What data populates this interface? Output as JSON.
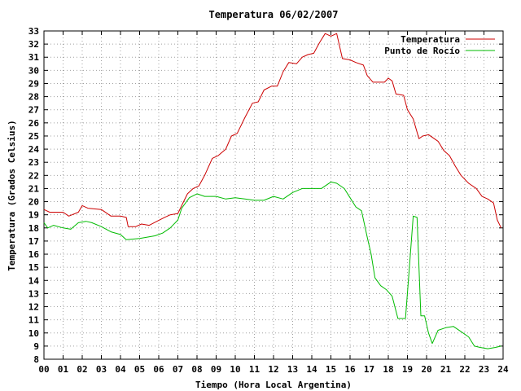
{
  "chart_data": {
    "type": "line",
    "title": "Temperatura 06/02/2007",
    "xlabel": "Tiempo (Hora Local Argentina)",
    "ylabel": "Temperatura (Grados Celsius)",
    "xlim": [
      0,
      24
    ],
    "ylim": [
      8,
      33
    ],
    "x_ticks": [
      "00",
      "01",
      "02",
      "03",
      "04",
      "05",
      "06",
      "07",
      "08",
      "09",
      "10",
      "11",
      "12",
      "13",
      "14",
      "15",
      "16",
      "17",
      "18",
      "19",
      "20",
      "21",
      "22",
      "23",
      "24"
    ],
    "y_ticks": [
      8,
      9,
      10,
      11,
      12,
      13,
      14,
      15,
      16,
      17,
      18,
      19,
      20,
      21,
      22,
      23,
      24,
      25,
      26,
      27,
      28,
      29,
      30,
      31,
      32,
      33
    ],
    "grid": true,
    "legend_position": "top-right",
    "series": [
      {
        "name": "Temperatura",
        "color": "#cc0000",
        "points": [
          [
            0,
            19.4
          ],
          [
            0.3,
            19.2
          ],
          [
            1,
            19.2
          ],
          [
            1.3,
            18.9
          ],
          [
            1.8,
            19.2
          ],
          [
            2,
            19.7
          ],
          [
            2.3,
            19.5
          ],
          [
            3,
            19.4
          ],
          [
            3.5,
            18.9
          ],
          [
            4,
            18.9
          ],
          [
            4.3,
            18.8
          ],
          [
            4.4,
            18.1
          ],
          [
            4.8,
            18.1
          ],
          [
            5.1,
            18.3
          ],
          [
            5.5,
            18.2
          ],
          [
            5.9,
            18.5
          ],
          [
            6.3,
            18.8
          ],
          [
            6.6,
            19.0
          ],
          [
            7,
            19.1
          ],
          [
            7.3,
            20.0
          ],
          [
            7.5,
            20.6
          ],
          [
            7.8,
            21.0
          ],
          [
            8.1,
            21.2
          ],
          [
            8.4,
            22.0
          ],
          [
            8.8,
            23.3
          ],
          [
            9.1,
            23.5
          ],
          [
            9.5,
            24.0
          ],
          [
            9.8,
            25.0
          ],
          [
            10.1,
            25.2
          ],
          [
            10.5,
            26.4
          ],
          [
            10.9,
            27.5
          ],
          [
            11.2,
            27.6
          ],
          [
            11.5,
            28.5
          ],
          [
            11.9,
            28.8
          ],
          [
            12.2,
            28.8
          ],
          [
            12.5,
            29.9
          ],
          [
            12.8,
            30.6
          ],
          [
            13.2,
            30.5
          ],
          [
            13.5,
            31.0
          ],
          [
            13.8,
            31.2
          ],
          [
            14.1,
            31.3
          ],
          [
            14.4,
            32.1
          ],
          [
            14.7,
            32.8
          ],
          [
            15.0,
            32.6
          ],
          [
            15.3,
            32.8
          ],
          [
            15.6,
            30.9
          ],
          [
            16.0,
            30.8
          ],
          [
            16.3,
            30.6
          ],
          [
            16.7,
            30.4
          ],
          [
            16.9,
            29.6
          ],
          [
            17.2,
            29.1
          ],
          [
            17.6,
            29.1
          ],
          [
            17.8,
            29.1
          ],
          [
            18.0,
            29.4
          ],
          [
            18.2,
            29.2
          ],
          [
            18.4,
            28.2
          ],
          [
            18.8,
            28.1
          ],
          [
            19.0,
            27.0
          ],
          [
            19.3,
            26.3
          ],
          [
            19.6,
            24.8
          ],
          [
            19.8,
            25.0
          ],
          [
            20.1,
            25.1
          ],
          [
            20.4,
            24.8
          ],
          [
            20.6,
            24.6
          ],
          [
            20.9,
            23.9
          ],
          [
            21.2,
            23.5
          ],
          [
            21.5,
            22.7
          ],
          [
            21.8,
            22.0
          ],
          [
            22.2,
            21.4
          ],
          [
            22.6,
            21.0
          ],
          [
            22.9,
            20.4
          ],
          [
            23.2,
            20.2
          ],
          [
            23.5,
            19.9
          ],
          [
            23.7,
            18.6
          ],
          [
            23.9,
            18.0
          ]
        ]
      },
      {
        "name": "Punto de Rocío",
        "color": "#00bb00",
        "points": [
          [
            0,
            18.4
          ],
          [
            0.2,
            18.0
          ],
          [
            0.5,
            18.2
          ],
          [
            1.0,
            18.0
          ],
          [
            1.4,
            17.9
          ],
          [
            1.8,
            18.4
          ],
          [
            2.2,
            18.5
          ],
          [
            2.5,
            18.4
          ],
          [
            3.0,
            18.1
          ],
          [
            3.5,
            17.7
          ],
          [
            4.0,
            17.5
          ],
          [
            4.3,
            17.1
          ],
          [
            5.0,
            17.2
          ],
          [
            5.4,
            17.3
          ],
          [
            5.8,
            17.4
          ],
          [
            6.2,
            17.6
          ],
          [
            6.6,
            18.0
          ],
          [
            7.0,
            18.6
          ],
          [
            7.2,
            19.5
          ],
          [
            7.6,
            20.3
          ],
          [
            8.0,
            20.6
          ],
          [
            8.4,
            20.4
          ],
          [
            9.0,
            20.4
          ],
          [
            9.5,
            20.2
          ],
          [
            10.0,
            20.3
          ],
          [
            10.5,
            20.2
          ],
          [
            11.0,
            20.1
          ],
          [
            11.5,
            20.1
          ],
          [
            12.0,
            20.4
          ],
          [
            12.5,
            20.2
          ],
          [
            13.0,
            20.7
          ],
          [
            13.5,
            21.0
          ],
          [
            14.0,
            21.0
          ],
          [
            14.5,
            21.0
          ],
          [
            15.0,
            21.5
          ],
          [
            15.3,
            21.4
          ],
          [
            15.7,
            21.0
          ],
          [
            16.0,
            20.3
          ],
          [
            16.3,
            19.6
          ],
          [
            16.6,
            19.3
          ],
          [
            16.9,
            17.3
          ],
          [
            17.1,
            16.0
          ],
          [
            17.3,
            14.2
          ],
          [
            17.6,
            13.6
          ],
          [
            17.9,
            13.3
          ],
          [
            18.2,
            12.8
          ],
          [
            18.5,
            11.1
          ],
          [
            18.9,
            11.1
          ],
          [
            19.1,
            15.0
          ],
          [
            19.3,
            18.9
          ],
          [
            19.5,
            18.8
          ],
          [
            19.7,
            11.3
          ],
          [
            19.9,
            11.3
          ],
          [
            20.1,
            10.0
          ],
          [
            20.3,
            9.2
          ],
          [
            20.6,
            10.2
          ],
          [
            21.0,
            10.4
          ],
          [
            21.4,
            10.5
          ],
          [
            21.8,
            10.1
          ],
          [
            22.2,
            9.7
          ],
          [
            22.5,
            9.0
          ],
          [
            22.8,
            8.9
          ],
          [
            23.2,
            8.8
          ],
          [
            23.6,
            8.9
          ],
          [
            23.9,
            9.0
          ]
        ]
      }
    ]
  }
}
